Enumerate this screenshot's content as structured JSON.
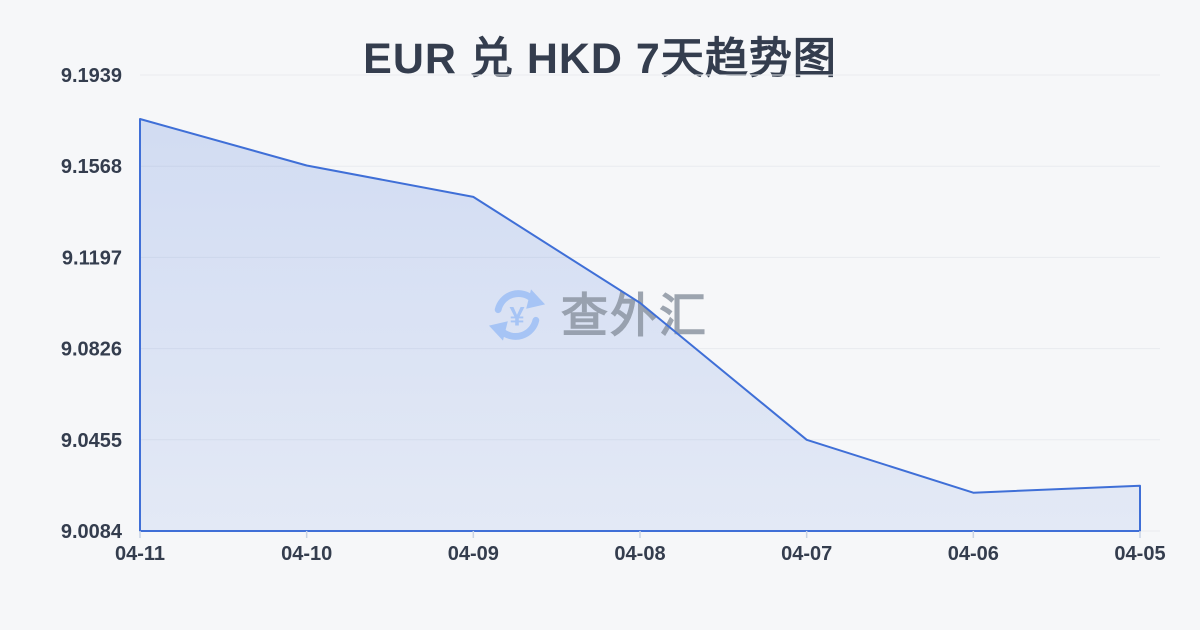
{
  "title": "EUR 兑 HKD 7天趋势图",
  "watermark": {
    "text": "查外汇",
    "icon": "currency-exchange-icon",
    "icon_symbol": "¥"
  },
  "colors": {
    "background": "#f6f7f9",
    "text": "#343d4e",
    "grid_line": "#e9ebef",
    "axis_tick": "#c9d3e4",
    "series_line": "#3f6fd7",
    "area_fill_top": "rgba(63,111,215,0.20)",
    "area_fill_bottom": "rgba(63,111,215,0.10)",
    "watermark_icon": "#a6c4f5",
    "watermark_text": "#8d96a3"
  },
  "chart_data": {
    "type": "area",
    "title": "EUR 兑 HKD 7天趋势图",
    "categories": [
      "04-11",
      "04-10",
      "04-09",
      "04-08",
      "04-07",
      "04-06",
      "04-05"
    ],
    "values": [
      9.176,
      9.1571,
      9.1443,
      9.1012,
      9.0455,
      9.024,
      9.0268
    ],
    "y_tick_labels": [
      "9.1939",
      "9.1568",
      "9.1197",
      "9.0826",
      "9.0455",
      "9.0084"
    ],
    "ylim": [
      9.0084,
      9.1939
    ],
    "xlabel": "",
    "ylabel": "",
    "grid": true,
    "legend": false
  }
}
